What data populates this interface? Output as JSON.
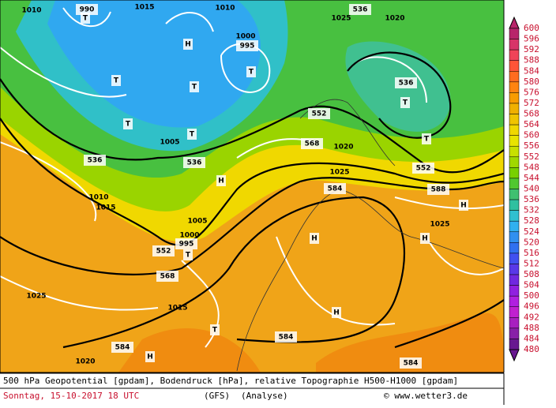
{
  "caption": {
    "line1": "500 hPa Geopotential [gpdam], Bodendruck [hPa], relative Topographie H500-H1000 [gpdam]",
    "date": "Sonntag, 15-10-2017  18 UTC",
    "model": "(GFS)",
    "run": "(Analyse)",
    "source": "© www.wetter3.de"
  },
  "legend": {
    "values": [
      600,
      596,
      592,
      588,
      584,
      580,
      576,
      572,
      568,
      564,
      560,
      556,
      552,
      548,
      544,
      540,
      536,
      532,
      528,
      524,
      520,
      516,
      512,
      508,
      504,
      500,
      496,
      492,
      488,
      484,
      480
    ]
  },
  "map": {
    "labels": [
      "T",
      "T",
      "T",
      "T",
      "T",
      "T",
      "T",
      "T",
      "T",
      "T",
      "H",
      "H",
      "H",
      "H",
      "H",
      "H",
      "H",
      "552",
      "552",
      "552",
      "536",
      "536",
      "536",
      "536",
      "568",
      "568",
      "584",
      "584",
      "584",
      "584",
      "588",
      "1010",
      "1015",
      "1010",
      "1005",
      "1000",
      "995",
      "990",
      "1025",
      "1020",
      "1020",
      "1025",
      "1025",
      "1020",
      "1015",
      "1010",
      "1005",
      "1000",
      "995",
      "1015",
      "1025"
    ]
  }
}
